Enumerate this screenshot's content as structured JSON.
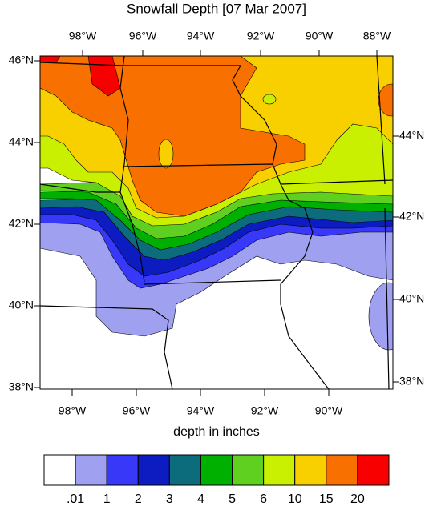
{
  "title": "Snowfall Depth [07 Mar 2007]",
  "top_lon_labels": [
    "98°W",
    "96°W",
    "94°W",
    "92°W",
    "90°W",
    "88°W"
  ],
  "bottom_lon_labels": [
    "98°W",
    "96°W",
    "94°W",
    "92°W",
    "90°W"
  ],
  "left_lat_labels": [
    "46°N",
    "44°N",
    "42°N",
    "40°N",
    "38°N"
  ],
  "right_lat_labels": [
    "44°N",
    "42°N",
    "40°N",
    "38°N"
  ],
  "colorbar": {
    "label": "depth in inches",
    "levels": [
      ".01",
      "1",
      "2",
      "3",
      "4",
      "5",
      "6",
      "10",
      "15",
      "20"
    ],
    "colors": [
      "#ffffff",
      "#a0a0f0",
      "#3838f8",
      "#0c1cc0",
      "#0c6c7c",
      "#00b000",
      "#60d020",
      "#c8f000",
      "#f8d000",
      "#f87000",
      "#f80000"
    ]
  }
}
